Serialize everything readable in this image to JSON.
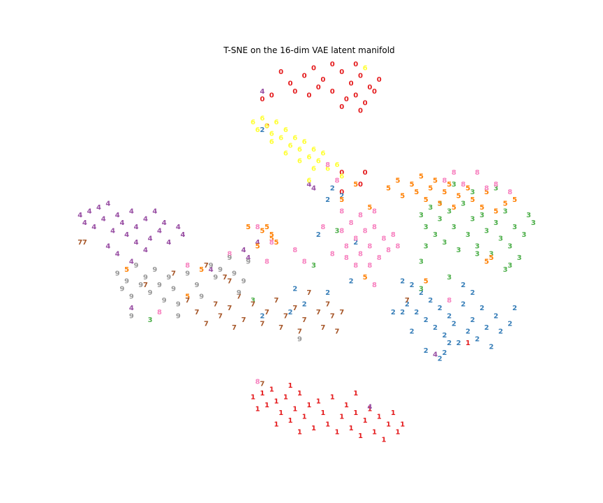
{
  "chart_data": {
    "type": "scatter",
    "title": "T-SNE on the 16-dim VAE latent manifold",
    "xlim": [
      0,
      100
    ],
    "ylim": [
      0,
      100
    ],
    "series": [
      {
        "name": "0",
        "color": "#e41a1c",
        "x": [
          49,
          51,
          53,
          55,
          57,
          59,
          61,
          63,
          55,
          58,
          60,
          62,
          52,
          50,
          47,
          44,
          46,
          57,
          61,
          64,
          65,
          60,
          40,
          42,
          41,
          57,
          62,
          61,
          57
        ],
        "y": [
          96,
          98,
          95,
          99,
          97,
          94,
          96,
          93,
          92,
          90,
          91,
          89,
          93,
          91,
          92,
          97,
          94,
          88,
          87,
          92,
          95,
          99,
          90,
          91,
          83,
          71,
          71,
          68,
          66
        ]
      },
      {
        "name": "1",
        "color": "#e41a1c",
        "x": [
          38,
          40,
          41,
          42,
          43,
          44,
          45,
          46,
          47,
          48,
          49,
          50,
          51,
          52,
          53,
          54,
          55,
          56,
          57,
          58,
          59,
          60,
          61,
          62,
          63,
          64,
          65,
          66,
          67,
          68,
          69,
          70,
          39,
          43,
          48,
          84,
          46,
          60
        ],
        "y": [
          13,
          14,
          11,
          15,
          12,
          9,
          13,
          7,
          10,
          14,
          8,
          11,
          5,
          12,
          9,
          6,
          13,
          4,
          8,
          11,
          5,
          9,
          3,
          7,
          10,
          4,
          8,
          2,
          6,
          9,
          4,
          6,
          10,
          6,
          4,
          27,
          16,
          14
        ]
      },
      {
        "name": "2",
        "color": "#377eb8",
        "x": [
          70,
          72,
          74,
          71,
          73,
          75,
          76,
          77,
          78,
          79,
          80,
          81,
          82,
          83,
          84,
          85,
          86,
          87,
          88,
          89,
          90,
          91,
          93,
          94,
          72,
          75,
          78,
          80,
          85,
          83,
          54,
          55,
          57,
          52,
          59,
          54,
          47,
          49,
          46,
          40,
          40,
          79,
          60,
          70,
          68
        ],
        "y": [
          43,
          42,
          40,
          37,
          35,
          33,
          38,
          31,
          36,
          29,
          34,
          32,
          27,
          37,
          30,
          33,
          28,
          36,
          31,
          26,
          34,
          30,
          32,
          36,
          30,
          25,
          23,
          27,
          40,
          42,
          64,
          67,
          65,
          55,
          43,
          40,
          41,
          37,
          35,
          34,
          82,
          24.5,
          53,
          35,
          35
        ]
      },
      {
        "name": "3",
        "color": "#4daf4a",
        "x": [
          74,
          75,
          76,
          77,
          78,
          79,
          80,
          81,
          82,
          83,
          84,
          85,
          86,
          87,
          88,
          89,
          90,
          91,
          92,
          93,
          94,
          95,
          96,
          97,
          98,
          85,
          90,
          78,
          74,
          75,
          56,
          51,
          38,
          16,
          86,
          93,
          80,
          74,
          92,
          81
        ],
        "y": [
          60,
          57,
          62,
          55,
          59,
          53,
          61,
          57,
          51,
          63,
          55,
          59,
          52,
          60,
          56,
          50,
          58,
          54,
          61,
          52,
          57,
          49,
          55,
          60,
          58,
          66,
          67,
          63,
          48,
          52,
          56,
          47,
          38,
          33,
          50,
          47,
          44,
          41,
          46,
          68
        ]
      },
      {
        "name": "4",
        "color": "#984ea3",
        "x": [
          1,
          2,
          3,
          4,
          5,
          6,
          7,
          8,
          9,
          10,
          11,
          12,
          13,
          15,
          16,
          17,
          18,
          19,
          20,
          22,
          23,
          7,
          9,
          12,
          15,
          13,
          36,
          39,
          37,
          29,
          12,
          50,
          51,
          40,
          63,
          77
        ],
        "y": [
          60,
          58,
          61,
          57,
          62,
          59,
          63,
          56,
          60,
          58,
          55,
          61,
          57,
          59,
          54,
          61,
          56,
          58,
          53,
          57,
          55,
          52,
          50,
          48,
          51,
          53,
          51,
          53,
          49,
          46,
          36,
          68,
          67,
          92,
          10.5,
          24
        ]
      },
      {
        "name": "5",
        "color": "#ff7f00",
        "x": [
          67,
          69,
          70,
          72,
          73,
          74,
          75,
          76,
          77,
          78,
          79,
          80,
          81,
          82,
          84,
          85,
          87,
          88,
          90,
          92,
          94,
          57,
          60,
          63,
          37,
          40,
          41,
          43,
          42,
          39,
          42,
          27,
          24,
          11,
          88,
          89,
          62,
          75
        ],
        "y": [
          67,
          69,
          65,
          68,
          66,
          70,
          64,
          67,
          69,
          63,
          66,
          68,
          62,
          65,
          67,
          64,
          62,
          66,
          61,
          63,
          64,
          64,
          68,
          62,
          57,
          56,
          57,
          53,
          55,
          52,
          54,
          46,
          39,
          46,
          48,
          49,
          44,
          43
        ]
      },
      {
        "name": "6",
        "color": "#ffff33",
        "x": [
          38,
          39,
          40,
          41,
          42,
          43,
          44,
          45,
          46,
          47,
          48,
          49,
          50,
          51,
          52,
          53,
          54,
          56,
          57,
          42,
          48,
          45,
          51,
          62,
          50
        ],
        "y": [
          84,
          82,
          85,
          83,
          81,
          84,
          80,
          82,
          78,
          80,
          77,
          79,
          75,
          77,
          74,
          76,
          72,
          73,
          70,
          79,
          74,
          76,
          72,
          98,
          69
        ]
      },
      {
        "name": "7",
        "color": "#a65628",
        "x": [
          24,
          26,
          28,
          30,
          31,
          33,
          34,
          35,
          36,
          38,
          40,
          41,
          43,
          44,
          45,
          47,
          48,
          49,
          50,
          52,
          53,
          54,
          55,
          56,
          57,
          32,
          33,
          1,
          2,
          15,
          28,
          21,
          71,
          40
        ],
        "y": [
          38,
          35,
          32,
          37,
          34,
          36,
          31,
          39,
          33,
          37,
          32,
          35,
          38,
          31,
          34,
          36,
          30,
          33,
          40,
          35,
          31,
          37,
          34,
          30,
          35,
          44,
          43,
          53,
          53,
          42,
          47,
          45,
          38,
          16.5
        ]
      },
      {
        "name": "8",
        "color": "#f781bf",
        "x": [
          57,
          58,
          59,
          60,
          61,
          62,
          63,
          64,
          65,
          66,
          67,
          68,
          69,
          60,
          63,
          58,
          61,
          64,
          55,
          79,
          81,
          83,
          86,
          88,
          90,
          93,
          53,
          47,
          49,
          33,
          42,
          41,
          24,
          18,
          39,
          80,
          57,
          56,
          54,
          64,
          39
        ],
        "y": [
          56,
          52,
          58,
          54,
          50,
          56,
          52,
          57,
          49,
          54,
          51,
          55,
          52,
          47,
          47,
          49,
          60,
          61,
          50,
          69,
          71,
          68,
          71,
          67,
          68,
          66,
          57,
          51,
          48,
          50,
          53,
          48,
          47,
          35,
          57,
          38,
          61,
          69,
          73,
          42,
          17
        ]
      },
      {
        "name": "9",
        "color": "#999999",
        "x": [
          9,
          10,
          11,
          12,
          13,
          14,
          15,
          16,
          17,
          18,
          19,
          20,
          21,
          22,
          24,
          26,
          27,
          29,
          30,
          31,
          33,
          34,
          36,
          37,
          35,
          12,
          48,
          22
        ],
        "y": [
          45,
          41,
          43,
          39,
          47,
          42,
          44,
          40,
          46,
          42,
          38,
          44,
          41,
          37,
          45,
          42,
          39,
          47,
          44,
          46,
          49,
          45,
          43,
          48,
          40,
          34,
          28,
          34
        ]
      }
    ]
  }
}
